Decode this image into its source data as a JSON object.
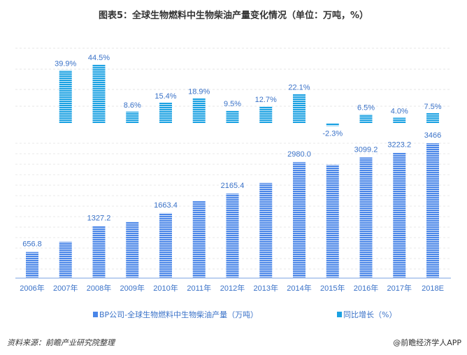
{
  "title": "图表5：全球生物燃料中生物柴油产量变化情况（单位：万吨，%）",
  "colors": {
    "production": "#4a86e8",
    "growth": "#1ba1e2"
  },
  "chart_data": [
    {
      "type": "bar",
      "name": "同比增长（%）",
      "categories": [
        "2006年",
        "2007年",
        "2008年",
        "2009年",
        "2010年",
        "2011年",
        "2012年",
        "2013年",
        "2014年",
        "2015年",
        "2016年",
        "2017年",
        "2018E"
      ],
      "values": [
        null,
        39.9,
        44.5,
        8.6,
        15.4,
        18.9,
        9.5,
        12.7,
        22.1,
        -2.3,
        6.5,
        4.0,
        7.5
      ],
      "labels": [
        "",
        "39.9%",
        "44.5%",
        "8.6%",
        "15.4%",
        "18.9%",
        "9.5%",
        "12.7%",
        "22.1%",
        "-2.3%",
        "6.5%",
        "4.0%",
        "7.5%"
      ]
    },
    {
      "type": "bar",
      "name": "BP公司-全球生物燃料中生物柴油产量（万吨）",
      "categories": [
        "2006年",
        "2007年",
        "2008年",
        "2009年",
        "2010年",
        "2011年",
        "2012年",
        "2013年",
        "2014年",
        "2015年",
        "2016年",
        "2017年",
        "2018E"
      ],
      "values": [
        656.8,
        918.9,
        1327.2,
        1441.3,
        1663.4,
        1977.8,
        2165.4,
        2440.4,
        2980.0,
        2911.5,
        3099.2,
        3223.2,
        3466
      ],
      "labels": [
        "656.8",
        "",
        "1327.2",
        "",
        "1663.4",
        "",
        "2165.4",
        "",
        "2980.0",
        "",
        "3099.2",
        "3223.2",
        "3466"
      ]
    }
  ],
  "legend": {
    "production": "BP公司-全球生物燃料中生物柴油产量（万吨）",
    "growth": "同比增长（%）"
  },
  "footer": {
    "source": "资料来源：前瞻产业研究院整理",
    "app": "@前瞻经济学人APP"
  }
}
